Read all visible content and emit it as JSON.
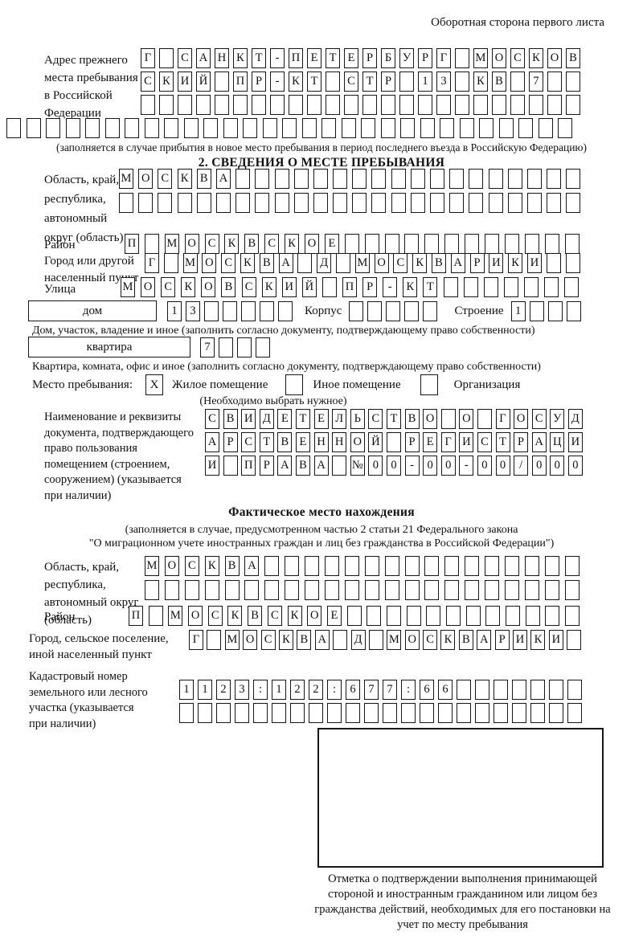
{
  "page": {
    "header_note": "Оборотная сторона первого листа"
  },
  "prev_address": {
    "label": "Адрес прежнего\nместа пребывания\nв Российской\nФедерации",
    "rows": [
      [
        "Г",
        "",
        "С",
        "А",
        "Н",
        "К",
        "Т",
        "-",
        "П",
        "Е",
        "Т",
        "Е",
        "Р",
        "Б",
        "У",
        "Р",
        "Г",
        "",
        "М",
        "О",
        "С",
        "К",
        "О",
        "В"
      ],
      [
        "С",
        "К",
        "И",
        "Й",
        "",
        "П",
        "Р",
        "-",
        "К",
        "Т",
        "",
        "С",
        "Т",
        "Р",
        "",
        "1",
        "3",
        "",
        "К",
        "В",
        "",
        "7",
        "",
        ""
      ],
      [
        "",
        "",
        "",
        "",
        "",
        "",
        "",
        "",
        "",
        "",
        "",
        "",
        "",
        "",
        "",
        "",
        "",
        "",
        "",
        "",
        "",
        "",
        "",
        ""
      ]
    ],
    "row_full": [
      "",
      "",
      "",
      "",
      "",
      "",
      "",
      "",
      "",
      "",
      "",
      "",
      "",
      "",
      "",
      "",
      "",
      "",
      "",
      "",
      "",
      "",
      "",
      "",
      "",
      "",
      "",
      "",
      ""
    ],
    "note": "(заполняется в случае прибытия в новое место пребывания в период последнего въезда в Российскую Федерацию)"
  },
  "section2": {
    "title": "2. СВЕДЕНИЯ О МЕСТЕ ПРЕБЫВАНИЯ",
    "oblast": {
      "label": "Область, край,\nреспублика,\nавтономный\nокруг (область)",
      "rows": [
        [
          "М",
          "О",
          "С",
          "К",
          "В",
          "А",
          "",
          "",
          "",
          "",
          "",
          "",
          "",
          "",
          "",
          "",
          "",
          "",
          "",
          "",
          "",
          "",
          "",
          ""
        ],
        [
          "",
          "",
          "",
          "",
          "",
          "",
          "",
          "",
          "",
          "",
          "",
          "",
          "",
          "",
          "",
          "",
          "",
          "",
          "",
          "",
          "",
          "",
          "",
          ""
        ]
      ]
    },
    "rayon": {
      "label": "Район",
      "row": [
        "П",
        "",
        "М",
        "О",
        "С",
        "К",
        "В",
        "С",
        "К",
        "О",
        "Е",
        "",
        "",
        "",
        "",
        "",
        "",
        "",
        "",
        "",
        "",
        "",
        ""
      ]
    },
    "gorod": {
      "label": "Город или другой\nнаселенный пункт",
      "row": [
        "Г",
        "",
        "М",
        "О",
        "С",
        "К",
        "В",
        "А",
        "",
        "Д",
        "",
        "М",
        "О",
        "С",
        "К",
        "В",
        "А",
        "Р",
        "И",
        "К",
        "И",
        "",
        ""
      ]
    },
    "ulitsa": {
      "label": "Улица",
      "row": [
        "М",
        "О",
        "С",
        "К",
        "О",
        "В",
        "С",
        "К",
        "И",
        "Й",
        "",
        "П",
        "Р",
        "-",
        "К",
        "Т",
        "",
        "",
        "",
        "",
        "",
        "",
        ""
      ]
    },
    "dom": {
      "label": "дом",
      "cells": [
        "1",
        "3",
        "",
        "",
        "",
        "",
        ""
      ],
      "korpus_label": "Корпус",
      "korpus_cells": [
        "",
        "",
        "",
        "",
        ""
      ],
      "stroenie_label": "Строение",
      "stroenie_cells": [
        "1",
        "",
        "",
        ""
      ]
    },
    "dom_note": "Дом, участок, владение и иное (заполнить согласно документу, подтверждающему право собственности)",
    "kvartira": {
      "label": "квартира",
      "cells": [
        "7",
        "",
        "",
        ""
      ]
    },
    "kvartira_note": "Квартира, комната, офис и иное (заполнить согласно документу, подтверждающему право собственности)",
    "mesto": {
      "label": "Место пребывания:",
      "options": [
        {
          "label": "Жилое помещение",
          "checked": "X"
        },
        {
          "label": "Иное помещение",
          "checked": ""
        },
        {
          "label": "Организация",
          "checked": ""
        }
      ],
      "note": "(Необходимо выбрать нужное)"
    },
    "document": {
      "label": "Наименование и реквизиты\nдокумента, подтверждающего\nправо пользования\nпомещением (строением,\nсооружением) (указывается\nпри наличии)",
      "rows": [
        [
          "С",
          "В",
          "И",
          "Д",
          "Е",
          "Т",
          "Е",
          "Л",
          "Ь",
          "С",
          "Т",
          "В",
          "О",
          "",
          "О",
          "",
          "Г",
          "О",
          "С",
          "У",
          "Д"
        ],
        [
          "А",
          "Р",
          "С",
          "Т",
          "В",
          "Е",
          "Н",
          "Н",
          "О",
          "Й",
          "",
          "Р",
          "Е",
          "Г",
          "И",
          "С",
          "Т",
          "Р",
          "А",
          "Ц",
          "И"
        ],
        [
          "И",
          "",
          "П",
          "Р",
          "А",
          "В",
          "А",
          "",
          "№",
          "0",
          "0",
          "-",
          "0",
          "0",
          "-",
          "0",
          "0",
          "/",
          "0",
          "0",
          "0"
        ]
      ]
    }
  },
  "fact": {
    "title": "Фактическое место нахождения",
    "note1": "(заполняется в случае, предусмотренном частью 2 статьи 21 Федерального закона",
    "note2": "\"О миграционном учете иностранных граждан и лиц без гражданства в Российской Федерации\")",
    "oblast": {
      "label": "Область, край,\nреспублика,\nавтономный округ\n(область)",
      "rows": [
        [
          "М",
          "О",
          "С",
          "К",
          "В",
          "А",
          "",
          "",
          "",
          "",
          "",
          "",
          "",
          "",
          "",
          "",
          "",
          "",
          "",
          "",
          "",
          ""
        ],
        [
          "",
          "",
          "",
          "",
          "",
          "",
          "",
          "",
          "",
          "",
          "",
          "",
          "",
          "",
          "",
          "",
          "",
          "",
          "",
          "",
          "",
          ""
        ]
      ]
    },
    "rayon": {
      "label": "Район",
      "row": [
        "П",
        "",
        "М",
        "О",
        "С",
        "К",
        "В",
        "С",
        "К",
        "О",
        "Е",
        "",
        "",
        "",
        "",
        "",
        "",
        "",
        "",
        "",
        "",
        "",
        ""
      ]
    },
    "gorod": {
      "label": "Город, сельское поселение,\nиной населенный пункт",
      "row": [
        "Г",
        "",
        "М",
        "О",
        "С",
        "К",
        "В",
        "А",
        "",
        "Д",
        "",
        "М",
        "О",
        "С",
        "К",
        "В",
        "А",
        "Р",
        "И",
        "К",
        "И",
        ""
      ]
    },
    "kadastr": {
      "label": "Кадастровый номер\nземельного или лесного\nучастка (указывается\nпри наличии)",
      "rows": [
        [
          "1",
          "1",
          "2",
          "3",
          ":",
          "1",
          "2",
          "2",
          ":",
          "6",
          "7",
          "7",
          ":",
          "6",
          "6",
          "",
          "",
          "",
          "",
          "",
          "",
          ""
        ],
        [
          "",
          "",
          "",
          "",
          "",
          "",
          "",
          "",
          "",
          "",
          "",
          "",
          "",
          "",
          "",
          "",
          "",
          "",
          "",
          "",
          "",
          ""
        ]
      ]
    },
    "stamp_caption": "Отметка о подтверждении выполнения принимающей стороной и иностранным гражданином или лицом без гражданства действий, необходимых для его постановки на учет по месту пребывания"
  }
}
